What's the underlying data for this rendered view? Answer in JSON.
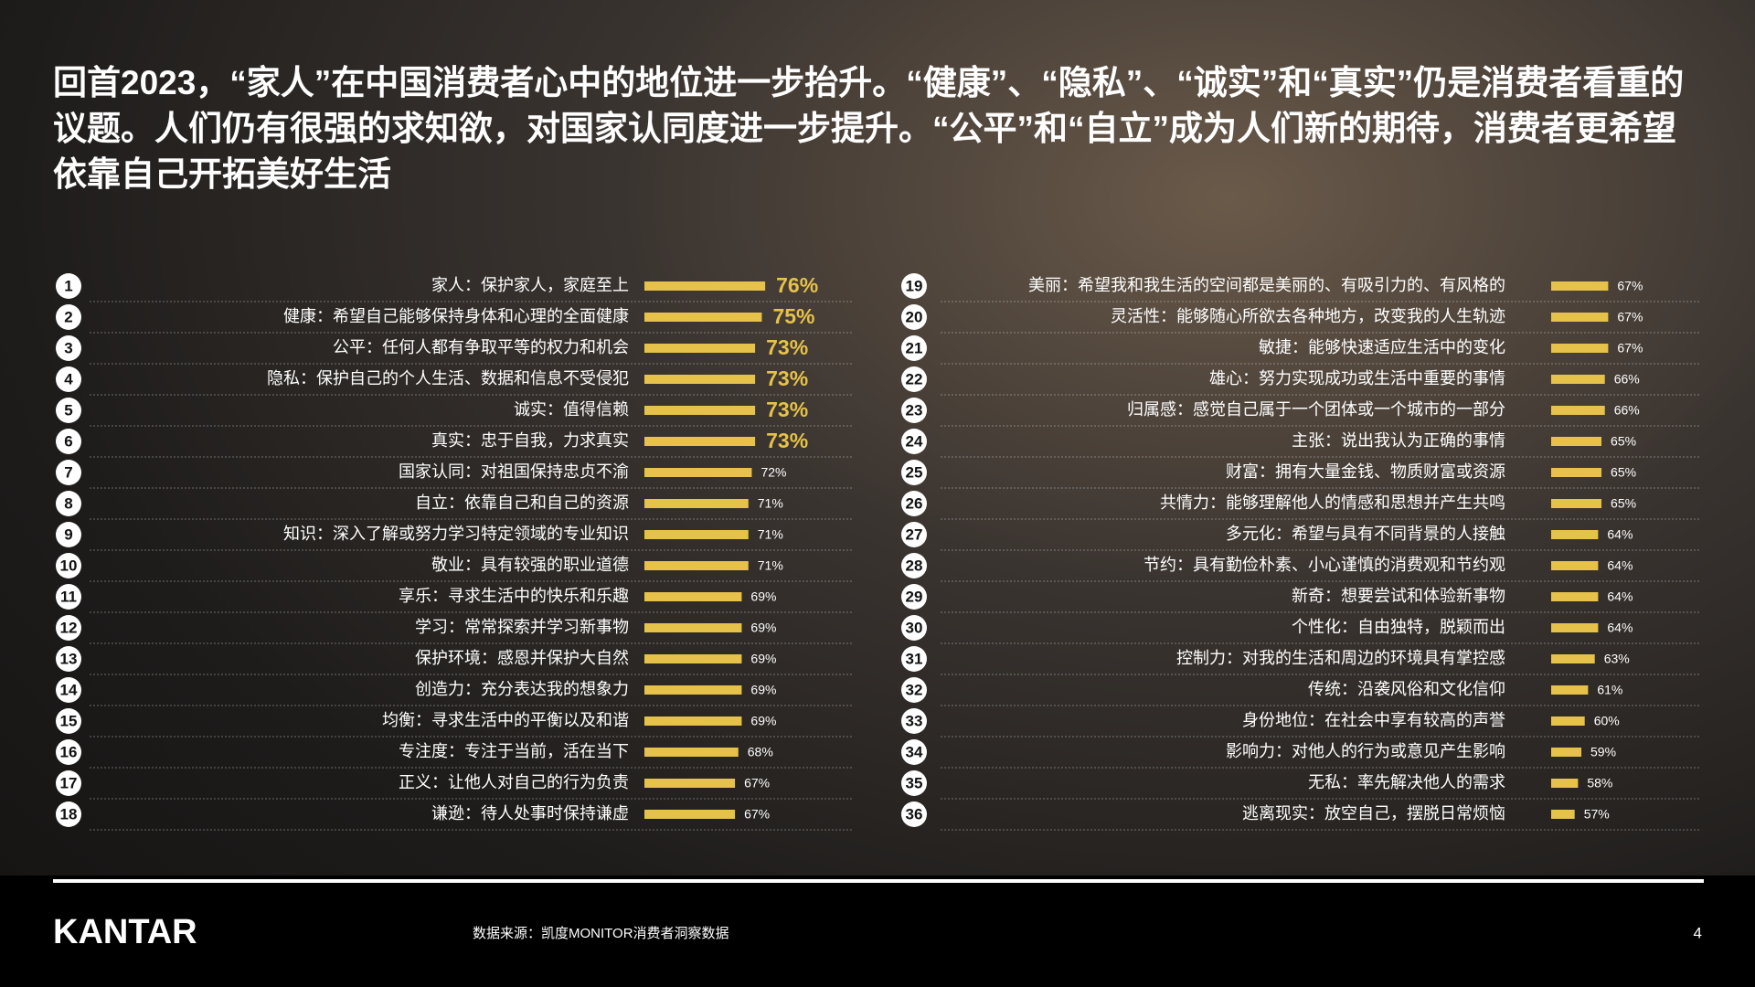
{
  "title": "回首2023，“家人”在中国消费者心中的地位进一步抬升。“健康”、“隐私”、“诚实”和“真实”仍是消费者看重的议题。人们仍有很强的求知欲，对国家认同度进一步提升。“公平”和“自立”成为人们新的期待，消费者更希望依靠自己开拓美好生活",
  "chart_data": [
    {
      "type": "bar",
      "color": "#e6c24a",
      "xlim": [
        40,
        76
      ],
      "ranks": [
        1,
        2,
        3,
        4,
        5,
        6,
        7,
        8,
        9,
        10,
        11,
        12,
        13,
        14,
        15,
        16,
        17,
        18
      ],
      "categories": [
        "家人：保护家人，家庭至上",
        "健康：希望自己能够保持身体和心理的全面健康",
        "公平：任何人都有争取平等的权力和机会",
        "隐私：保护自己的个人生活、数据和信息不受侵犯",
        "诚实：值得信赖",
        "真实：忠于自我，力求真实",
        "国家认同：对祖国保持忠贞不渝",
        "自立：依靠自己和自己的资源",
        "知识：深入了解或努力学习特定领域的专业知识",
        "敬业：具有较强的职业道德",
        "享乐：寻求生活中的快乐和乐趣",
        "学习：常常探索并学习新事物",
        "保护环境：感恩并保护大自然",
        "创造力：充分表达我的想象力",
        "均衡：寻求生活中的平衡以及和谐",
        "专注度：专注于当前，活在当下",
        "正义：让他人对自己的行为负责",
        "谦逊：待人处事时保持谦虚"
      ],
      "values": [
        76,
        75,
        73,
        73,
        73,
        73,
        72,
        71,
        71,
        71,
        69,
        69,
        69,
        69,
        69,
        68,
        67,
        67
      ],
      "value_labels": [
        "76%",
        "75%",
        "73%",
        "73%",
        "73%",
        "73%",
        "72%",
        "71%",
        "71%",
        "71%",
        "69%",
        "69%",
        "69%",
        "69%",
        "69%",
        "68%",
        "67%",
        "67%"
      ]
    },
    {
      "type": "bar",
      "color": "#e6c24a",
      "xlim": [
        50,
        67
      ],
      "ranks": [
        19,
        20,
        21,
        22,
        23,
        24,
        25,
        26,
        27,
        28,
        29,
        30,
        31,
        32,
        33,
        34,
        35,
        36
      ],
      "categories": [
        "美丽：希望我和我生活的空间都是美丽的、有吸引力的、有风格的",
        "灵活性：能够随心所欲去各种地方，改变我的人生轨迹",
        "敏捷：能够快速适应生活中的变化",
        "雄心：努力实现成功或生活中重要的事情",
        "归属感：感觉自己属于一个团体或一个城市的一部分",
        "主张：说出我认为正确的事情",
        "财富：拥有大量金钱、物质财富或资源",
        "共情力：能够理解他人的情感和思想并产生共鸣",
        "多元化：希望与具有不同背景的人接触",
        "节约：具有勤俭朴素、小心谨慎的消费观和节约观",
        "新奇：想要尝试和体验新事物",
        "个性化：自由独特，脱颖而出",
        "控制力：对我的生活和周边的环境具有掌控感",
        "传统：沿袭风俗和文化信仰",
        "身份地位：在社会中享有较高的声誉",
        "影响力：对他人的行为或意见产生影响",
        "无私：率先解决他人的需求",
        "逃离现实：放空自己，摆脱日常烦恼"
      ],
      "values": [
        67,
        67,
        67,
        66,
        66,
        65,
        65,
        65,
        64,
        64,
        64,
        64,
        63,
        61,
        60,
        59,
        58,
        57
      ],
      "value_labels": [
        "67%",
        "67%",
        "67%",
        "66%",
        "66%",
        "65%",
        "65%",
        "65%",
        "64%",
        "64%",
        "64%",
        "64%",
        "63%",
        "61%",
        "60%",
        "59%",
        "58%",
        "57%"
      ]
    }
  ],
  "footer": {
    "logo": "KANTAR",
    "source": "数据来源：凯度MONITOR消费者洞察数据",
    "page": "4"
  }
}
